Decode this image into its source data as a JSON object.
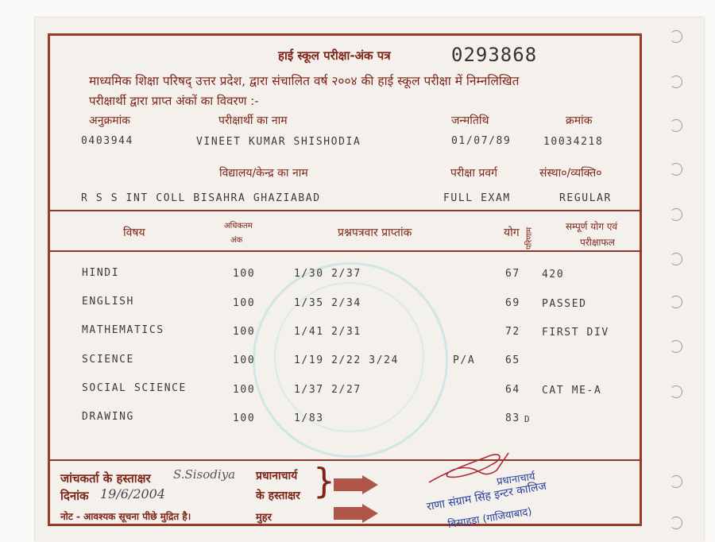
{
  "header": {
    "title": "हाई स्कूल परीक्षा-अंक पत्र",
    "serial_number": "0293868",
    "intro_line1": "माध्यमिक शिक्षा परिषद् उत्तर प्रदेश, द्वारा संचालित वर्ष २००४ की हाई स्कूल परीक्षा में निम्नलिखित",
    "intro_line2": "परीक्षार्थी द्वारा प्राप्त अंकों का विवरण :-"
  },
  "candidate": {
    "roll_label": "अनुक्रमांक",
    "roll_value": "0403944",
    "name_label": "परीक्षार्थी का नाम",
    "name_value": "VINEET KUMAR SHISHODIA",
    "dob_label": "जन्मतिथि",
    "dob_value": "01/07/89",
    "serial_label": "क्रमांक",
    "serial_value": "10034218",
    "school_label": "विद्यालय/केन्द्र का नाम",
    "school_value": "R S S INT COLL BISAHRA GHAZIABAD",
    "category_label": "परीक्षा प्रवर्ग",
    "category_value": "FULL EXAM",
    "type_label": "संस्था०/व्यक्ति०",
    "type_value": "REGULAR"
  },
  "table": {
    "headers": {
      "subject": "विषय",
      "max_marks_1": "अधिकतम",
      "max_marks_2": "अंक",
      "paper_marks": "प्रश्नपत्रवार प्राप्तांक",
      "total": "योग",
      "result": "परिणाम",
      "grand_1": "सम्पूर्ण योग एवं",
      "grand_2": "परीक्षाफल"
    },
    "rows": [
      {
        "subject": "HINDI",
        "max": "100",
        "papers": "1/30 2/37",
        "pa": "",
        "total": "67",
        "summary": "420"
      },
      {
        "subject": "ENGLISH",
        "max": "100",
        "papers": "1/35 2/34",
        "pa": "",
        "total": "69",
        "summary": "PASSED"
      },
      {
        "subject": "MATHEMATICS",
        "max": "100",
        "papers": "1/41 2/31",
        "pa": "",
        "total": "72",
        "summary": "FIRST DIV"
      },
      {
        "subject": "SCIENCE",
        "max": "100",
        "papers": "1/19 2/22 3/24",
        "pa": "P/A",
        "total": "65",
        "summary": ""
      },
      {
        "subject": "SOCIAL SCIENCE",
        "max": "100",
        "papers": "1/37 2/27",
        "pa": "",
        "total": "64",
        "summary": "CAT ME-A"
      },
      {
        "subject": "DRAWING",
        "max": "100",
        "papers": "1/83",
        "pa": "",
        "total": "83",
        "summary": "D"
      }
    ]
  },
  "footer": {
    "checker_sign_label": "जांचकर्ता के हस्ताक्षर",
    "checker_signature": "S.Sisodiya",
    "date_label": "दिनांक",
    "date_value": "19/6/2004",
    "note": "नोट - आवश्यक सूचना पीछे मुद्रित है।",
    "principal_label_1": "प्रधानाचार्य",
    "principal_label_2": "के हस्ताक्षर",
    "seal_label": "मुहर",
    "stamp_line1": "प्रधानाचार्य",
    "stamp_line2": "राणा संग्राम सिंह इन्टर कालिज",
    "stamp_line3": "बिसाहड़ा (गाजियाबाद)"
  },
  "colors": {
    "frame": "#9a3b2c",
    "hindi_text": "#7e2418",
    "print": "#3a3a3a",
    "stamp": "#2b3f9c",
    "arrow": "#b0554a"
  }
}
